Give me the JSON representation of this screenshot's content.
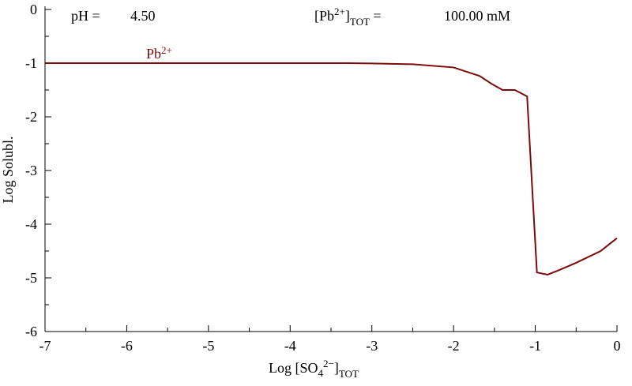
{
  "chart_data": {
    "type": "line",
    "ph_label": "pH =",
    "ph_value": "4.50",
    "total_label": [
      "[Pb",
      "2+",
      "]",
      "TOT",
      " ="
    ],
    "total_value": "100.00 mM",
    "series": [
      {
        "name": [
          "Pb",
          "2+"
        ],
        "color": "#7b0c0c",
        "x": [
          -7,
          -3.3,
          -3,
          -2.5,
          -2,
          -1.68,
          -1.54,
          -1.4,
          -1.25,
          -1.1,
          -0.98,
          -0.85,
          -0.7,
          -0.5,
          -0.2,
          0
        ],
        "values": [
          -1,
          -1,
          -1.005,
          -1.02,
          -1.08,
          -1.24,
          -1.38,
          -1.5,
          -1.5,
          -1.62,
          -4.9,
          -4.94,
          -4.85,
          -4.72,
          -4.5,
          -4.26
        ]
      }
    ],
    "xlabel": [
      "Log [SO",
      "4",
      "2−",
      "]",
      "TOT"
    ],
    "ylabel": "Log Solubl.",
    "xlim": [
      -7,
      0
    ],
    "xticks": [
      -7,
      -6,
      -5,
      -4,
      -3,
      -2,
      -1,
      0
    ],
    "ylim": [
      -6,
      0
    ],
    "yticks": [
      0,
      -1,
      -2,
      -3,
      -4,
      -5,
      -6
    ]
  }
}
